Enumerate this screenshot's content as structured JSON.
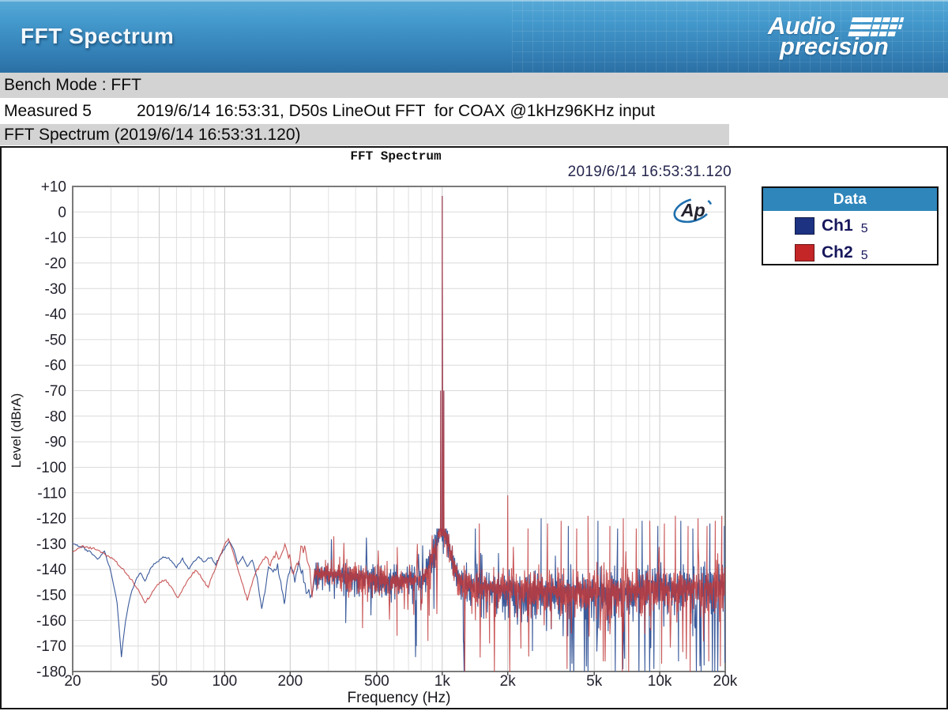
{
  "header": {
    "title": "FFT Spectrum",
    "brand_line1": "Audio",
    "brand_line2": "precision"
  },
  "info_rows": {
    "bench_mode": "Bench Mode : FFT",
    "measured_label": "Measured 5",
    "measured_detail": "2019/6/14 16:53:31, D50s LineOut FFT  for COAX @1kHz96KHz input",
    "section_title": "FFT Spectrum (2019/6/14 16:53:31.120)"
  },
  "chart": {
    "title": "FFT Spectrum",
    "timestamp": "2019/6/14 16:53:31.120",
    "ap_watermark": "Ap",
    "legend": {
      "header": "Data",
      "items": [
        {
          "label": "Ch1",
          "suffix": "5",
          "color": "#1e3282"
        },
        {
          "label": "Ch2",
          "suffix": "5",
          "color": "#c42527"
        }
      ]
    }
  },
  "colors": {
    "header_blue_top": "#58aad7",
    "header_blue_bottom": "#2b6fa3",
    "row_gray": "#d3d3d3",
    "legend_header_blue": "#2f86bb",
    "grid_major": "#c9c9c9",
    "grid_minor": "#e0e0e0",
    "plot_border": "#7a7a7a",
    "ap_logo_blue": "#1f6fad"
  },
  "chart_data": {
    "type": "line",
    "title": "FFT Spectrum",
    "xlabel": "Frequency (Hz)",
    "ylabel": "Level (dBrA)",
    "x_scale": "log",
    "x_range": [
      20,
      20000
    ],
    "x_ticks": [
      "20",
      "50",
      "100",
      "200",
      "500",
      "1k",
      "2k",
      "5k",
      "10k",
      "20k"
    ],
    "x_tick_values": [
      20,
      50,
      100,
      200,
      500,
      1000,
      2000,
      5000,
      10000,
      20000
    ],
    "y_range": [
      -180,
      10
    ],
    "y_tick_step": 10,
    "y_tick_labels": [
      "+10",
      "0",
      "-10",
      "-20",
      "-30",
      "-40",
      "-50",
      "-60",
      "-70",
      "-80",
      "-90",
      "-100",
      "-110",
      "-120",
      "-130",
      "-140",
      "-150",
      "-160",
      "-170",
      "-180"
    ],
    "grid": true,
    "legend_position": "top-right",
    "main_peak": {
      "freq_hz": 1000,
      "level_db": 6.3,
      "channels": [
        "Ch1",
        "Ch2"
      ]
    },
    "harmonic_spike": {
      "freq_hz": 2000,
      "level_db": -111,
      "channel": "Ch2"
    },
    "noise": {
      "dense_start_hz": 258,
      "envelope": [
        [
          260,
          -141
        ],
        [
          400,
          -142
        ],
        [
          600,
          -144
        ],
        [
          900,
          -143
        ],
        [
          1400,
          -146
        ],
        [
          2500,
          -147
        ],
        [
          5000,
          -148
        ],
        [
          9000,
          -147
        ],
        [
          14000,
          -146
        ],
        [
          20000,
          -145
        ]
      ],
      "spread": [
        [
          260,
          4.5
        ],
        [
          600,
          5.5
        ],
        [
          1200,
          6.5
        ],
        [
          2500,
          7.5
        ],
        [
          6000,
          8
        ],
        [
          20000,
          8
        ]
      ],
      "skirt": {
        "center_hz": 1000,
        "amp_db": 21,
        "width_decades": 0.05,
        "cap_db": -124
      }
    },
    "series": [
      {
        "name": "Ch1",
        "color": "#3a5a9b",
        "seed": 101,
        "low_keypoints": [
          [
            20,
            -130
          ],
          [
            22,
            -131
          ],
          [
            24,
            -133
          ],
          [
            26,
            -136
          ],
          [
            28,
            -133
          ],
          [
            30,
            -141
          ],
          [
            32,
            -153
          ],
          [
            33.5,
            -174
          ],
          [
            35,
            -160
          ],
          [
            37,
            -150
          ],
          [
            39,
            -144
          ],
          [
            41,
            -141
          ],
          [
            43,
            -145
          ],
          [
            46,
            -139
          ],
          [
            49,
            -137
          ],
          [
            52,
            -135
          ],
          [
            56,
            -136
          ],
          [
            60,
            -139
          ],
          [
            64,
            -136
          ],
          [
            68,
            -140
          ],
          [
            72,
            -137
          ],
          [
            76,
            -135
          ],
          [
            81,
            -137
          ],
          [
            86,
            -135
          ],
          [
            91,
            -138
          ],
          [
            96,
            -134
          ],
          [
            101,
            -131
          ],
          [
            105,
            -129
          ],
          [
            110,
            -132
          ],
          [
            115,
            -138
          ],
          [
            121,
            -135
          ],
          [
            127,
            -139
          ],
          [
            134,
            -136
          ],
          [
            141,
            -143
          ],
          [
            148,
            -156
          ],
          [
            153,
            -148
          ],
          [
            159,
            -139
          ],
          [
            167,
            -141
          ],
          [
            175,
            -138
          ],
          [
            183,
            -147
          ],
          [
            188,
            -153
          ],
          [
            194,
            -144
          ],
          [
            201,
            -140
          ],
          [
            210,
            -143
          ],
          [
            219,
            -139
          ],
          [
            228,
            -142
          ],
          [
            237,
            -147
          ],
          [
            247,
            -151
          ],
          [
            258,
            -144
          ]
        ],
        "spikes_up": [
          [
            1420,
            -124
          ],
          [
            2850,
            -120
          ],
          [
            3800,
            -123
          ],
          [
            5200,
            -121
          ],
          [
            6400,
            -124
          ],
          [
            8300,
            -121
          ],
          [
            9800,
            -123
          ],
          [
            12500,
            -121
          ],
          [
            14200,
            -124
          ],
          [
            17000,
            -122
          ],
          [
            19800,
            -123
          ]
        ],
        "spikes_down": [
          [
            360,
            -161
          ],
          [
            470,
            -158
          ],
          [
            760,
            -170
          ],
          [
            1250,
            -168
          ],
          [
            2600,
            -172
          ],
          [
            4600,
            -178
          ],
          [
            6900,
            -175
          ],
          [
            9400,
            -179
          ],
          [
            12200,
            -176
          ],
          [
            15500,
            -180
          ],
          [
            18500,
            -174
          ]
        ]
      },
      {
        "name": "Ch2",
        "color": "#c03a3b",
        "seed": 202,
        "low_keypoints": [
          [
            20,
            -133
          ],
          [
            22,
            -131
          ],
          [
            25,
            -132
          ],
          [
            28,
            -134
          ],
          [
            31,
            -136
          ],
          [
            34,
            -140
          ],
          [
            37,
            -144
          ],
          [
            40,
            -148
          ],
          [
            43,
            -153
          ],
          [
            46,
            -150
          ],
          [
            49,
            -146
          ],
          [
            53,
            -144
          ],
          [
            57,
            -147
          ],
          [
            61,
            -151
          ],
          [
            65,
            -147
          ],
          [
            69,
            -143
          ],
          [
            74,
            -140
          ],
          [
            79,
            -144
          ],
          [
            84,
            -147
          ],
          [
            89,
            -141
          ],
          [
            94,
            -136
          ],
          [
            99,
            -131
          ],
          [
            104,
            -128
          ],
          [
            109,
            -133
          ],
          [
            115,
            -140
          ],
          [
            121,
            -146
          ],
          [
            127,
            -152
          ],
          [
            133,
            -146
          ],
          [
            139,
            -141
          ],
          [
            146,
            -138
          ],
          [
            154,
            -135
          ],
          [
            162,
            -138
          ],
          [
            170,
            -134
          ],
          [
            179,
            -136
          ],
          [
            189,
            -131
          ],
          [
            199,
            -136
          ],
          [
            207,
            -142
          ],
          [
            215,
            -137
          ],
          [
            224,
            -133
          ],
          [
            233,
            -131
          ],
          [
            243,
            -137
          ],
          [
            252,
            -149
          ],
          [
            258,
            -142
          ]
        ],
        "spikes_up": [
          [
            1480,
            -122
          ],
          [
            2000,
            -111
          ],
          [
            2480,
            -124
          ],
          [
            3050,
            -122
          ],
          [
            3520,
            -121
          ],
          [
            4150,
            -124
          ],
          [
            4680,
            -119
          ],
          [
            5900,
            -123
          ],
          [
            6800,
            -120
          ],
          [
            7800,
            -124
          ],
          [
            9000,
            -121
          ],
          [
            10500,
            -122
          ],
          [
            11800,
            -119
          ],
          [
            13500,
            -123
          ],
          [
            15000,
            -120
          ],
          [
            16500,
            -123
          ],
          [
            18000,
            -121
          ],
          [
            19300,
            -119
          ]
        ],
        "spikes_down": [
          [
            430,
            -163
          ],
          [
            620,
            -166
          ],
          [
            860,
            -168
          ],
          [
            1650,
            -169
          ],
          [
            2300,
            -171
          ],
          [
            3750,
            -179
          ],
          [
            5500,
            -176
          ],
          [
            7200,
            -180
          ],
          [
            10200,
            -177
          ],
          [
            13800,
            -180
          ],
          [
            16800,
            -176
          ],
          [
            19000,
            -178
          ]
        ]
      }
    ]
  }
}
